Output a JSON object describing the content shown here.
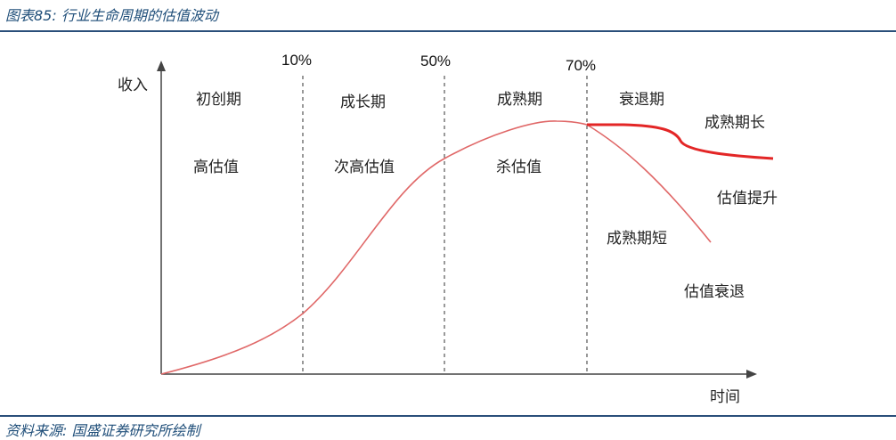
{
  "figure": {
    "title": "图表85:  行业生命周期的估值波动",
    "source": "资料来源:  国盛证券研究所绘制"
  },
  "axes": {
    "y_label": "收入",
    "x_label": "时间"
  },
  "thresholds": [
    "10%",
    "50%",
    "70%"
  ],
  "stages": [
    {
      "name": "初创期",
      "valuation": "高估值"
    },
    {
      "name": "成长期",
      "valuation": "次高估值"
    },
    {
      "name": "成熟期",
      "valuation": "杀估值"
    },
    {
      "name": "衰退期"
    }
  ],
  "branches": {
    "long": {
      "label": "成熟期长",
      "outcome": "估值提升"
    },
    "short": {
      "label": "成熟期短",
      "outcome": "估值衰退"
    }
  },
  "colors": {
    "curve": "#e06868",
    "branch_long": "#e32626",
    "title_rule": "#2a4f7a",
    "title_text": "#1f4e79"
  }
}
